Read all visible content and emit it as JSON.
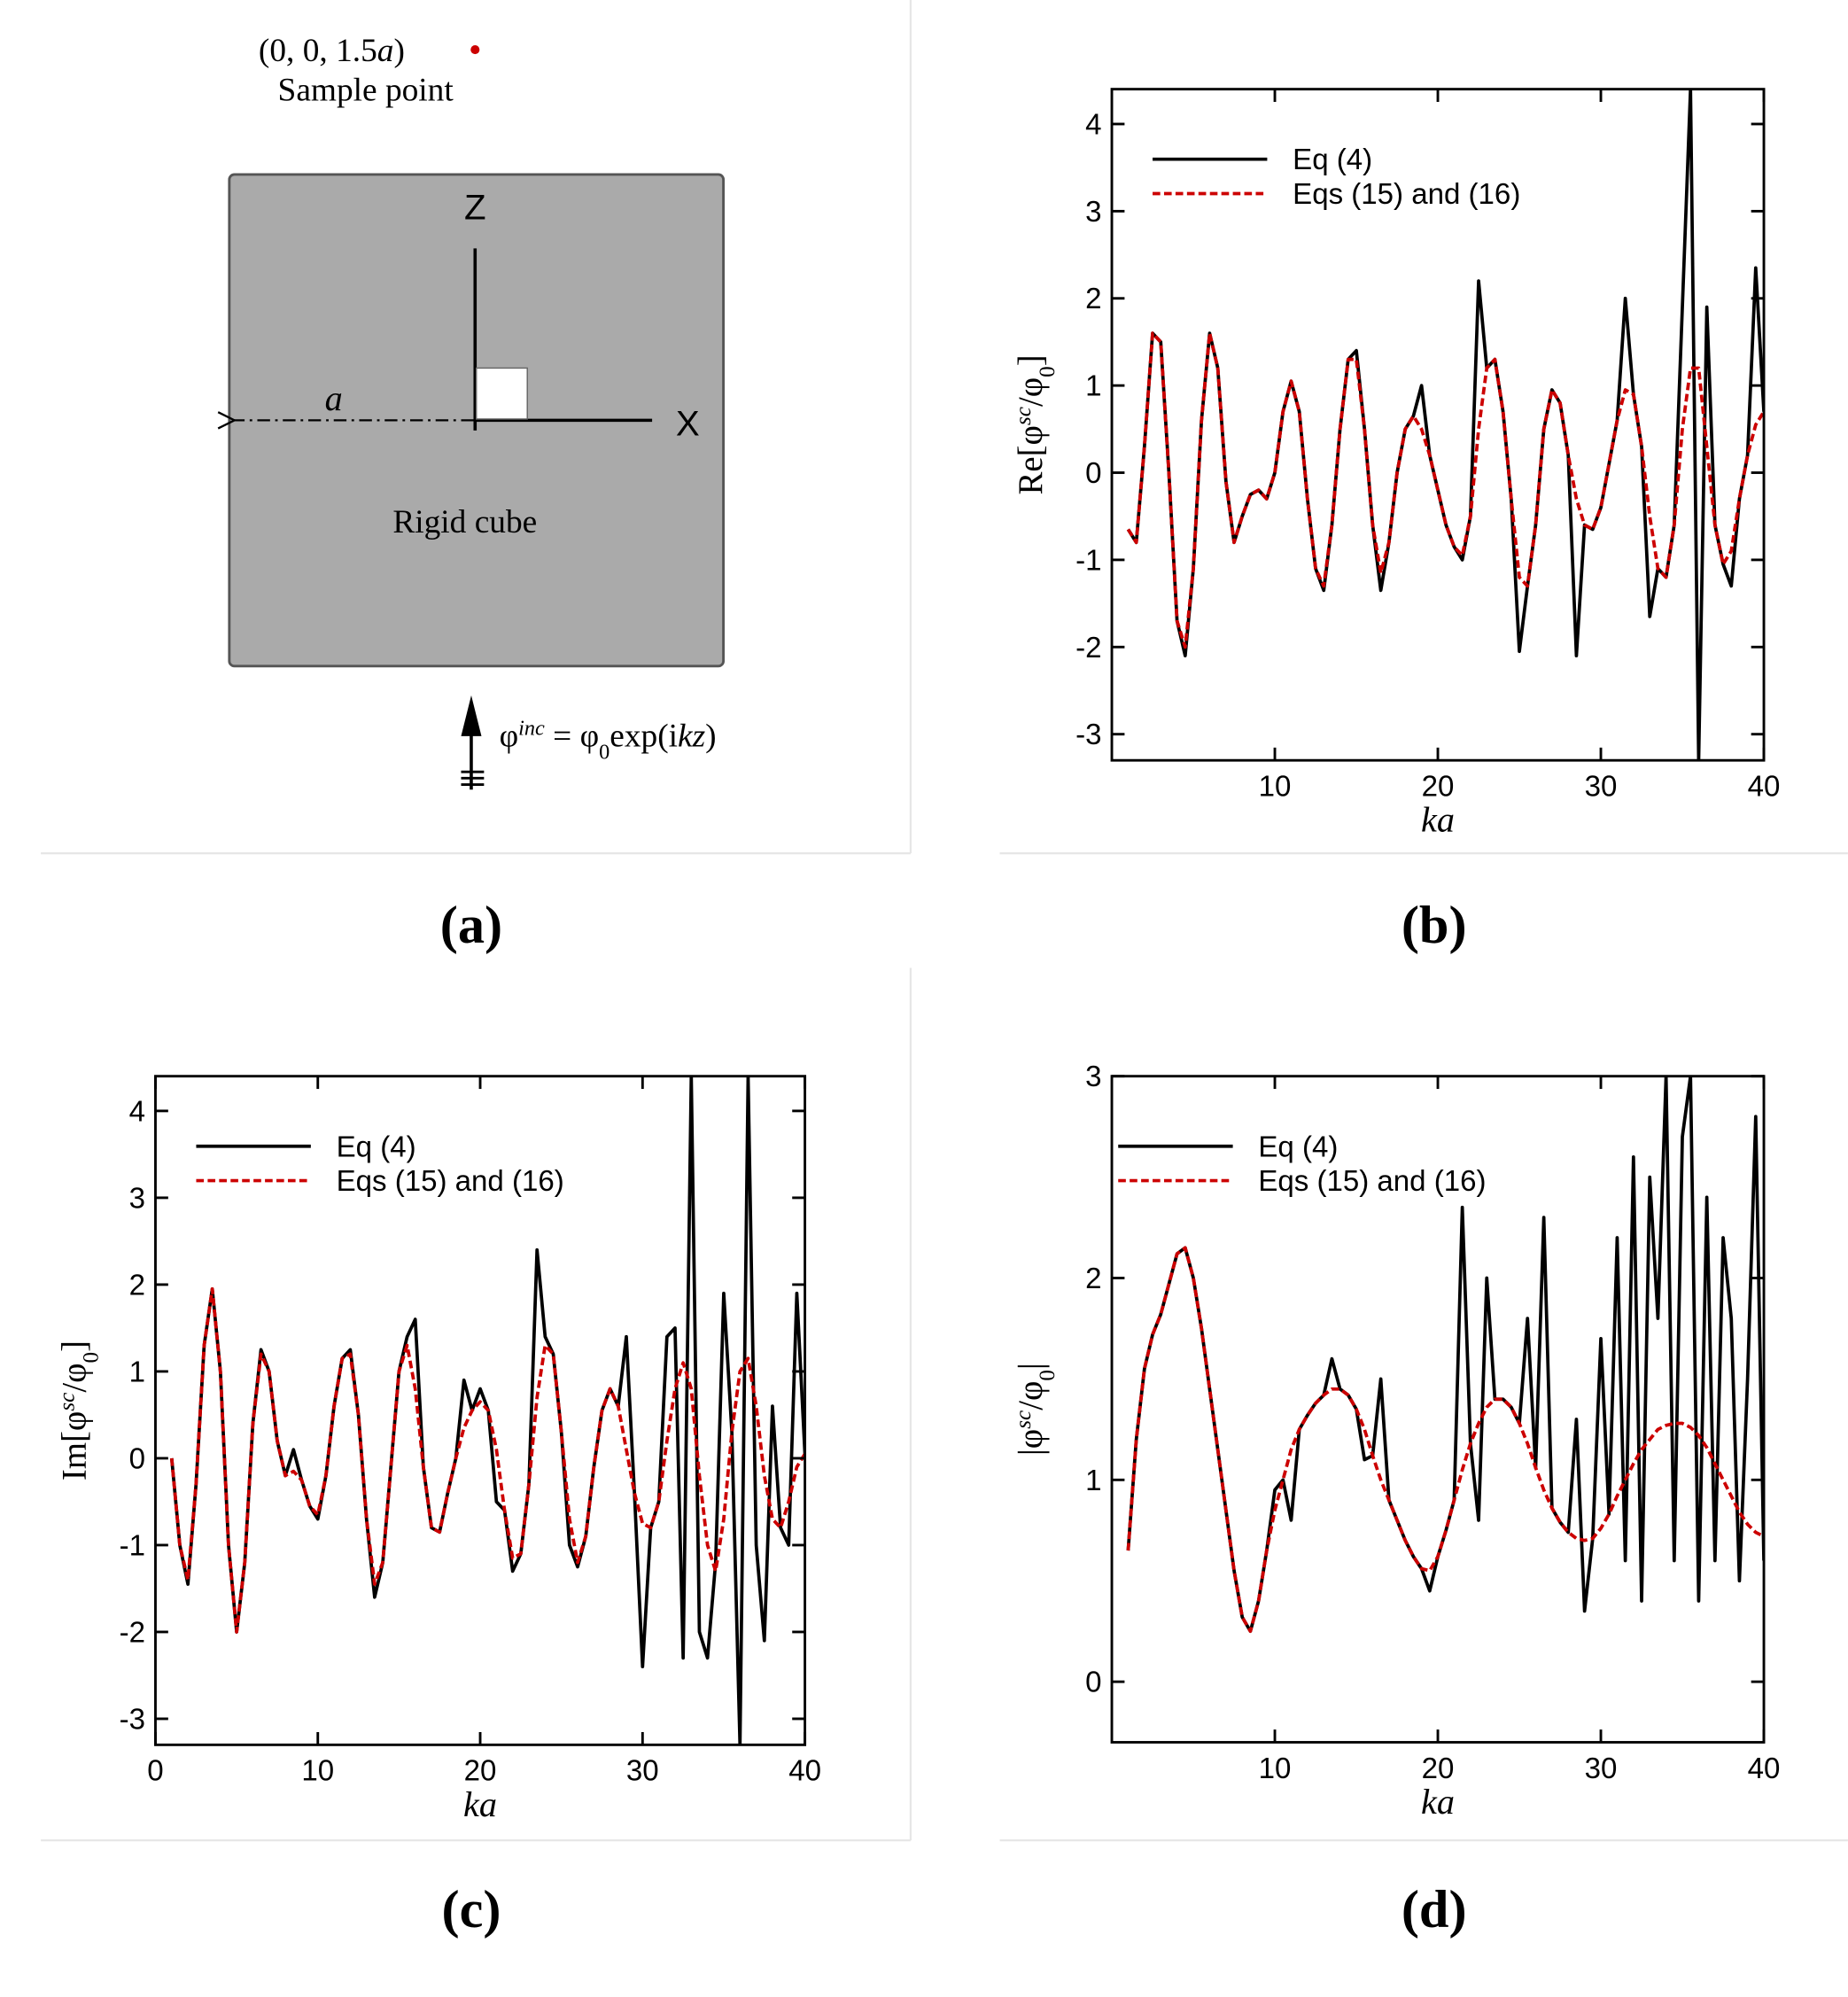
{
  "panel_labels": [
    "(a)",
    "(b)",
    "(c)",
    "(d)"
  ],
  "diagram": {
    "point_label": [
      {
        "text": "(0, 0, 1.5"
      },
      {
        "text": "a",
        "style": "italic"
      },
      {
        "text": ")"
      }
    ],
    "point_caption": "Sample point",
    "z_axis": "Z",
    "x_axis": "X",
    "half_width": "a",
    "body": "Rigid cube",
    "incident": [
      {
        "text": "φ"
      },
      {
        "text": "inc",
        "style": "sup"
      },
      {
        "text": " = φ"
      },
      {
        "text": "0",
        "style": "sub"
      },
      {
        "text": "exp(i"
      },
      {
        "text": "kz",
        "style": "italic"
      },
      {
        "text": ")"
      }
    ]
  },
  "chart_data": [
    {
      "type": "line",
      "xlabel": "ka",
      "ylabel": [
        {
          "text": "Re[φ"
        },
        {
          "text": "sc",
          "style": "sup"
        },
        {
          "text": "/φ"
        },
        {
          "text": "0",
          "style": "sub"
        },
        {
          "text": "]"
        }
      ],
      "xlim": [
        0,
        40
      ],
      "ylim": [
        -3.3,
        4.4
      ],
      "xticks": [
        10,
        20,
        30,
        40
      ],
      "yticks": [
        -3,
        -2,
        -1,
        0,
        1,
        2,
        3,
        4
      ],
      "legend": "upper left",
      "x": [
        1,
        1.5,
        2,
        2.5,
        3,
        3.5,
        4,
        4.5,
        5,
        5.5,
        6,
        6.5,
        7,
        7.5,
        8,
        8.5,
        9,
        9.5,
        10,
        10.5,
        11,
        11.5,
        12,
        12.5,
        13,
        13.5,
        14,
        14.5,
        15,
        15.5,
        16,
        16.5,
        17,
        17.5,
        18,
        18.5,
        19,
        19.5,
        20,
        20.5,
        21,
        21.5,
        22,
        22.5,
        23,
        23.5,
        24,
        24.5,
        25,
        25.5,
        26,
        26.5,
        27,
        27.5,
        28,
        28.5,
        29,
        29.5,
        30,
        30.5,
        31,
        31.5,
        32,
        32.5,
        33,
        33.5,
        34,
        34.5,
        35,
        35.5,
        36,
        36.5,
        37,
        37.5,
        38,
        38.5,
        39,
        39.5,
        40
      ],
      "series": [
        {
          "name": "Eq (4)",
          "color": "#000000",
          "style": "solid",
          "values": [
            -0.65,
            -0.8,
            0.3,
            1.6,
            1.5,
            0.0,
            -1.7,
            -2.1,
            -1.1,
            0.6,
            1.6,
            1.2,
            -0.1,
            -0.8,
            -0.5,
            -0.25,
            -0.2,
            -0.3,
            0.0,
            0.7,
            1.05,
            0.7,
            -0.3,
            -1.1,
            -1.35,
            -0.6,
            0.5,
            1.3,
            1.4,
            0.5,
            -0.6,
            -1.35,
            -0.8,
            0.0,
            0.5,
            0.65,
            1.0,
            0.2,
            -0.2,
            -0.6,
            -0.85,
            -1.0,
            -0.5,
            2.2,
            1.2,
            1.3,
            0.7,
            -0.3,
            -2.05,
            -1.3,
            -0.6,
            0.5,
            0.95,
            0.8,
            0.2,
            -2.1,
            -0.6,
            -0.65,
            -0.4,
            0.1,
            0.6,
            2.0,
            0.9,
            0.3,
            -1.65,
            -1.1,
            -1.2,
            -0.6,
            1.9,
            4.4,
            -3.3,
            1.9,
            -0.6,
            -1.05,
            -1.3,
            -0.3,
            0.2,
            2.35,
            0.7
          ]
        },
        {
          "name": "Eqs (15) and (16)",
          "color": "#cc0000",
          "style": "dashed",
          "values": [
            -0.65,
            -0.8,
            0.3,
            1.6,
            1.5,
            0.0,
            -1.7,
            -2.0,
            -1.1,
            0.6,
            1.6,
            1.2,
            -0.1,
            -0.8,
            -0.5,
            -0.25,
            -0.2,
            -0.3,
            0.0,
            0.7,
            1.05,
            0.7,
            -0.3,
            -1.1,
            -1.3,
            -0.6,
            0.5,
            1.3,
            1.3,
            0.5,
            -0.6,
            -1.15,
            -0.8,
            0.0,
            0.5,
            0.65,
            0.5,
            0.2,
            -0.2,
            -0.6,
            -0.85,
            -0.95,
            -0.5,
            0.5,
            1.2,
            1.3,
            0.7,
            -0.3,
            -1.2,
            -1.3,
            -0.6,
            0.5,
            0.95,
            0.8,
            0.2,
            -0.3,
            -0.6,
            -0.65,
            -0.4,
            0.1,
            0.6,
            0.95,
            0.9,
            0.3,
            -0.5,
            -1.1,
            -1.2,
            -0.6,
            0.5,
            1.2,
            1.2,
            0.3,
            -0.6,
            -1.05,
            -0.9,
            -0.3,
            0.2,
            0.55,
            0.7
          ]
        }
      ]
    },
    {
      "type": "line",
      "xlabel": "ka",
      "ylabel": [
        {
          "text": "Im[φ"
        },
        {
          "text": "sc",
          "style": "sup"
        },
        {
          "text": "/φ"
        },
        {
          "text": "0",
          "style": "sub"
        },
        {
          "text": "]"
        }
      ],
      "xlim": [
        0,
        40
      ],
      "ylim": [
        -3.3,
        4.4
      ],
      "xticks": [
        0,
        10,
        20,
        30,
        40
      ],
      "yticks": [
        -3,
        -2,
        -1,
        0,
        1,
        2,
        3,
        4
      ],
      "legend": "upper left",
      "x": [
        1,
        1.5,
        2,
        2.5,
        3,
        3.5,
        4,
        4.5,
        5,
        5.5,
        6,
        6.5,
        7,
        7.5,
        8,
        8.5,
        9,
        9.5,
        10,
        10.5,
        11,
        11.5,
        12,
        12.5,
        13,
        13.5,
        14,
        14.5,
        15,
        15.5,
        16,
        16.5,
        17,
        17.5,
        18,
        18.5,
        19,
        19.5,
        20,
        20.5,
        21,
        21.5,
        22,
        22.5,
        23,
        23.5,
        24,
        24.5,
        25,
        25.5,
        26,
        26.5,
        27,
        27.5,
        28,
        28.5,
        29,
        29.5,
        30,
        30.5,
        31,
        31.5,
        32,
        32.5,
        33,
        33.5,
        34,
        34.5,
        35,
        35.5,
        36,
        36.5,
        37,
        37.5,
        38,
        38.5,
        39,
        39.5,
        40
      ],
      "series": [
        {
          "name": "Eq (4)",
          "color": "#000000",
          "style": "solid",
          "values": [
            0.0,
            -1.0,
            -1.45,
            -0.3,
            1.3,
            1.95,
            1.0,
            -1.0,
            -2.0,
            -1.2,
            0.4,
            1.25,
            1.0,
            0.2,
            -0.2,
            0.1,
            -0.25,
            -0.55,
            -0.7,
            -0.2,
            0.6,
            1.15,
            1.25,
            0.5,
            -0.7,
            -1.6,
            -1.2,
            -0.1,
            1.0,
            1.4,
            1.6,
            -0.1,
            -0.8,
            -0.85,
            -0.4,
            0.0,
            0.9,
            0.55,
            0.8,
            0.55,
            -0.5,
            -0.6,
            -1.3,
            -1.1,
            -0.3,
            2.4,
            1.4,
            1.2,
            0.3,
            -1.0,
            -1.25,
            -0.9,
            -0.1,
            0.55,
            0.8,
            0.6,
            1.4,
            -0.4,
            -2.4,
            -0.8,
            -0.5,
            1.4,
            1.5,
            -2.3,
            4.4,
            -2.0,
            -2.3,
            -1.2,
            1.9,
            0.3,
            -3.3,
            4.4,
            -1.0,
            -2.1,
            0.6,
            -0.8,
            -1.0,
            1.9,
            0.05
          ]
        },
        {
          "name": "Eqs (15) and (16)",
          "color": "#cc0000",
          "style": "dashed",
          "values": [
            0.0,
            -1.0,
            -1.4,
            -0.3,
            1.3,
            1.95,
            1.0,
            -1.0,
            -2.0,
            -1.2,
            0.4,
            1.2,
            1.0,
            0.2,
            -0.2,
            -0.15,
            -0.25,
            -0.55,
            -0.65,
            -0.2,
            0.6,
            1.15,
            1.2,
            0.5,
            -0.7,
            -1.45,
            -1.2,
            -0.1,
            1.0,
            1.3,
            0.8,
            -0.1,
            -0.8,
            -0.85,
            -0.4,
            0.0,
            0.35,
            0.55,
            0.65,
            0.55,
            0.1,
            -0.6,
            -1.15,
            -1.1,
            -0.3,
            0.7,
            1.3,
            1.2,
            0.3,
            -0.7,
            -1.2,
            -0.9,
            -0.1,
            0.55,
            0.8,
            0.6,
            0.1,
            -0.4,
            -0.75,
            -0.8,
            -0.5,
            0.2,
            0.8,
            1.1,
            0.8,
            -0.2,
            -1.0,
            -1.3,
            -0.7,
            0.3,
            1.0,
            1.15,
            0.6,
            -0.2,
            -0.7,
            -0.8,
            -0.5,
            -0.1,
            0.05
          ]
        }
      ]
    },
    {
      "type": "line",
      "xlabel": "ka",
      "ylabel": [
        {
          "text": "|φ"
        },
        {
          "text": "sc",
          "style": "sup"
        },
        {
          "text": "/φ"
        },
        {
          "text": "0",
          "style": "sub"
        },
        {
          "text": "|"
        }
      ],
      "xlim": [
        0,
        40
      ],
      "ylim": [
        -0.3,
        3
      ],
      "xticks": [
        10,
        20,
        30,
        40
      ],
      "yticks": [
        0,
        1,
        2,
        3
      ],
      "legend": "upper left",
      "x": [
        1,
        1.5,
        2,
        2.5,
        3,
        3.5,
        4,
        4.5,
        5,
        5.5,
        6,
        6.5,
        7,
        7.5,
        8,
        8.5,
        9,
        9.5,
        10,
        10.5,
        11,
        11.5,
        12,
        12.5,
        13,
        13.5,
        14,
        14.5,
        15,
        15.5,
        16,
        16.5,
        17,
        17.5,
        18,
        18.5,
        19,
        19.5,
        20,
        20.5,
        21,
        21.5,
        22,
        22.5,
        23,
        23.5,
        24,
        24.5,
        25,
        25.5,
        26,
        26.5,
        27,
        27.5,
        28,
        28.5,
        29,
        29.5,
        30,
        30.5,
        31,
        31.5,
        32,
        32.5,
        33,
        33.5,
        34,
        34.5,
        35,
        35.5,
        36,
        36.5,
        37,
        37.5,
        38,
        38.5,
        39,
        39.5,
        40
      ],
      "series": [
        {
          "name": "Eq (4)",
          "color": "#000000",
          "style": "solid",
          "values": [
            0.65,
            1.2,
            1.55,
            1.72,
            1.82,
            1.97,
            2.12,
            2.15,
            2.0,
            1.75,
            1.45,
            1.15,
            0.85,
            0.55,
            0.32,
            0.25,
            0.4,
            0.65,
            0.95,
            1.0,
            0.8,
            1.25,
            1.32,
            1.38,
            1.42,
            1.6,
            1.45,
            1.42,
            1.35,
            1.1,
            1.12,
            1.5,
            0.9,
            0.8,
            0.7,
            0.62,
            0.56,
            0.45,
            0.62,
            0.75,
            0.9,
            2.35,
            1.18,
            0.8,
            2.0,
            1.4,
            1.4,
            1.36,
            1.28,
            1.8,
            1.06,
            2.3,
            0.86,
            0.79,
            0.74,
            1.3,
            0.35,
            0.71,
            1.7,
            0.83,
            2.2,
            0.6,
            2.6,
            0.4,
            2.5,
            1.8,
            3.0,
            0.6,
            2.7,
            3.0,
            0.4,
            2.4,
            0.6,
            2.2,
            1.8,
            0.5,
            1.5,
            2.8,
            0.6
          ]
        },
        {
          "name": "Eqs (15) and (16)",
          "color": "#cc0000",
          "style": "dashed",
          "values": [
            0.65,
            1.2,
            1.55,
            1.72,
            1.82,
            1.97,
            2.12,
            2.15,
            2.0,
            1.75,
            1.45,
            1.15,
            0.85,
            0.55,
            0.32,
            0.25,
            0.4,
            0.65,
            0.85,
            1.0,
            1.15,
            1.25,
            1.32,
            1.38,
            1.42,
            1.45,
            1.45,
            1.42,
            1.35,
            1.25,
            1.12,
            1.0,
            0.9,
            0.8,
            0.7,
            0.62,
            0.56,
            0.55,
            0.62,
            0.75,
            0.9,
            1.05,
            1.18,
            1.28,
            1.36,
            1.4,
            1.4,
            1.36,
            1.28,
            1.18,
            1.06,
            0.95,
            0.86,
            0.79,
            0.74,
            0.71,
            0.7,
            0.71,
            0.76,
            0.83,
            0.92,
            1.0,
            1.08,
            1.15,
            1.2,
            1.25,
            1.27,
            1.28,
            1.28,
            1.26,
            1.22,
            1.16,
            1.08,
            1.0,
            0.92,
            0.84,
            0.78,
            0.74,
            0.72
          ]
        }
      ]
    }
  ]
}
